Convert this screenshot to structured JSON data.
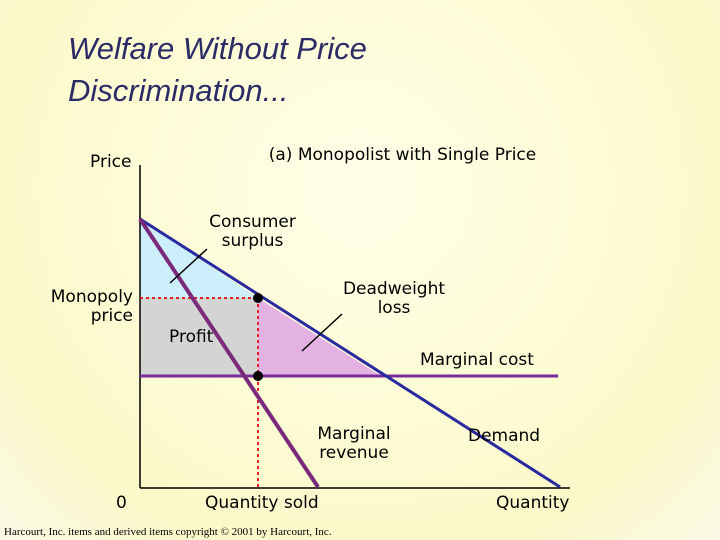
{
  "title": {
    "line1": "Welfare Without Price",
    "line2": "Discrimination..."
  },
  "panel_title": "(a) Monopolist with Single Price",
  "axis": {
    "y_label": "Price",
    "x_label": "Quantity",
    "origin": "0"
  },
  "labels": {
    "monopoly_price_line1": "Monopoly",
    "monopoly_price_line2": "price",
    "quantity_sold": "Quantity sold",
    "consumer_surplus_line1": "Consumer",
    "consumer_surplus_line2": "surplus",
    "deadweight_loss_line1": "Deadweight",
    "deadweight_loss_line2": "loss",
    "profit": "Profit",
    "marginal_cost": "Marginal cost",
    "marginal_revenue_line1": "Marginal",
    "marginal_revenue_line2": "revenue",
    "demand": "Demand"
  },
  "colors": {
    "title": "#2b2b66",
    "demand_curve": "#2a2aa0",
    "marginal_revenue_curve": "#7a2a7a",
    "marginal_cost_curve": "#7a2a9a",
    "consumer_surplus_fill": "#cdeefb",
    "profit_fill": "#d4d4d4",
    "deadweight_loss_fill": "#e3b2e3",
    "guide_lines": "#e02020"
  },
  "footer": "Harcourt, Inc. items and derived items copyright © 2001 by Harcourt, Inc."
}
